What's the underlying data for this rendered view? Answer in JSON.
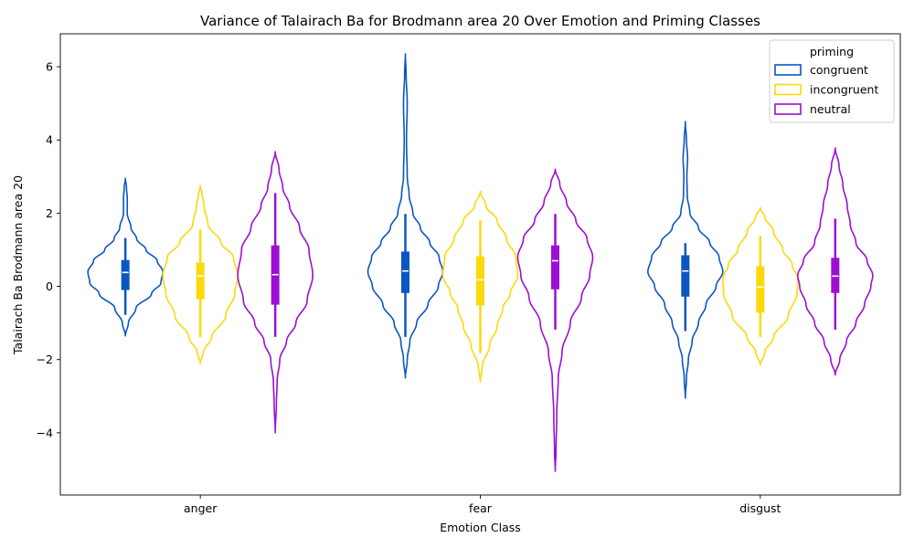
{
  "chart_data": {
    "type": "violin",
    "title": "Variance of Talairach Ba for Brodmann area 20 Over Emotion and Priming Classes",
    "xlabel": "Emotion Class",
    "ylabel": "Talairach Ba Brodmann area 20",
    "categories": [
      "anger",
      "fear",
      "disgust"
    ],
    "ylim": [
      -5.7,
      6.9
    ],
    "yticks": [
      -4,
      -2,
      0,
      2,
      4,
      6
    ],
    "ytick_labels": [
      "−4",
      "−2",
      "0",
      "2",
      "4",
      "6"
    ],
    "grid": false,
    "legend": {
      "title": "priming",
      "placement": "top-right"
    },
    "series": [
      {
        "name": "congruent",
        "color": "#0a56c2",
        "violins": [
          {
            "category": "anger",
            "median": 0.38,
            "q1": -0.1,
            "q3": 0.72,
            "whisker_low": -0.78,
            "whisker_high": 1.32,
            "min": -1.35,
            "max": 2.95,
            "profile": [
              [
                -1.35,
                0.0
              ],
              [
                -1.0,
                0.08
              ],
              [
                -0.6,
                0.28
              ],
              [
                -0.2,
                0.7
              ],
              [
                0.1,
                0.95
              ],
              [
                0.4,
                1.0
              ],
              [
                0.7,
                0.85
              ],
              [
                1.0,
                0.55
              ],
              [
                1.3,
                0.3
              ],
              [
                1.6,
                0.15
              ],
              [
                2.0,
                0.05
              ],
              [
                2.4,
                0.05
              ],
              [
                2.7,
                0.03
              ],
              [
                2.95,
                0.0
              ]
            ]
          },
          {
            "category": "fear",
            "median": 0.42,
            "q1": -0.18,
            "q3": 0.95,
            "whisker_low": -1.38,
            "whisker_high": 1.98,
            "min": -2.5,
            "max": 6.35,
            "profile": [
              [
                -2.5,
                0.0
              ],
              [
                -2.0,
                0.05
              ],
              [
                -1.5,
                0.12
              ],
              [
                -1.0,
                0.3
              ],
              [
                -0.5,
                0.6
              ],
              [
                0.0,
                0.88
              ],
              [
                0.4,
                1.0
              ],
              [
                0.8,
                0.9
              ],
              [
                1.2,
                0.65
              ],
              [
                1.6,
                0.4
              ],
              [
                2.0,
                0.2
              ],
              [
                2.5,
                0.1
              ],
              [
                3.0,
                0.05
              ],
              [
                4.0,
                0.03
              ],
              [
                5.0,
                0.05
              ],
              [
                5.8,
                0.02
              ],
              [
                6.35,
                0.0
              ]
            ]
          },
          {
            "category": "disgust",
            "median": 0.42,
            "q1": -0.28,
            "q3": 0.85,
            "whisker_low": -1.22,
            "whisker_high": 1.18,
            "min": -3.05,
            "max": 4.5,
            "profile": [
              [
                -3.05,
                0.0
              ],
              [
                -2.5,
                0.03
              ],
              [
                -2.0,
                0.08
              ],
              [
                -1.5,
                0.18
              ],
              [
                -1.0,
                0.35
              ],
              [
                -0.5,
                0.55
              ],
              [
                0.0,
                0.82
              ],
              [
                0.4,
                1.0
              ],
              [
                0.8,
                0.9
              ],
              [
                1.2,
                0.65
              ],
              [
                1.6,
                0.35
              ],
              [
                2.0,
                0.12
              ],
              [
                2.5,
                0.05
              ],
              [
                3.0,
                0.04
              ],
              [
                3.5,
                0.06
              ],
              [
                4.0,
                0.03
              ],
              [
                4.5,
                0.0
              ]
            ]
          }
        ]
      },
      {
        "name": "incongruent",
        "color": "#fcd90b",
        "violins": [
          {
            "category": "anger",
            "median": 0.28,
            "q1": -0.35,
            "q3": 0.65,
            "whisker_low": -1.38,
            "whisker_high": 1.55,
            "min": -2.1,
            "max": 2.75,
            "profile": [
              [
                -2.1,
                0.0
              ],
              [
                -1.8,
                0.08
              ],
              [
                -1.4,
                0.3
              ],
              [
                -0.8,
                0.68
              ],
              [
                -0.2,
                0.92
              ],
              [
                0.3,
                1.0
              ],
              [
                0.8,
                0.88
              ],
              [
                1.2,
                0.55
              ],
              [
                1.7,
                0.2
              ],
              [
                2.2,
                0.1
              ],
              [
                2.5,
                0.05
              ],
              [
                2.75,
                0.0
              ]
            ]
          },
          {
            "category": "fear",
            "median": 0.18,
            "q1": -0.52,
            "q3": 0.82,
            "whisker_low": -1.82,
            "whisker_high": 1.8,
            "min": -2.6,
            "max": 2.6,
            "profile": [
              [
                -2.6,
                0.0
              ],
              [
                -2.2,
                0.05
              ],
              [
                -1.6,
                0.25
              ],
              [
                -1.1,
                0.45
              ],
              [
                -0.6,
                0.6
              ],
              [
                -0.2,
                0.8
              ],
              [
                0.3,
                1.0
              ],
              [
                0.8,
                0.95
              ],
              [
                1.3,
                0.7
              ],
              [
                1.8,
                0.45
              ],
              [
                2.2,
                0.15
              ],
              [
                2.6,
                0.0
              ]
            ]
          },
          {
            "category": "disgust",
            "median": -0.02,
            "q1": -0.72,
            "q3": 0.55,
            "whisker_low": -1.38,
            "whisker_high": 1.38,
            "min": -2.15,
            "max": 2.15,
            "profile": [
              [
                -2.15,
                0.0
              ],
              [
                -1.8,
                0.12
              ],
              [
                -1.4,
                0.35
              ],
              [
                -0.8,
                0.75
              ],
              [
                -0.2,
                0.98
              ],
              [
                0.2,
                1.0
              ],
              [
                0.6,
                0.85
              ],
              [
                1.0,
                0.6
              ],
              [
                1.5,
                0.35
              ],
              [
                1.9,
                0.12
              ],
              [
                2.15,
                0.0
              ]
            ]
          }
        ]
      },
      {
        "name": "neutral",
        "color": "#9d0ed4",
        "violins": [
          {
            "category": "anger",
            "median": 0.32,
            "q1": -0.5,
            "q3": 1.12,
            "whisker_low": -1.38,
            "whisker_high": 2.55,
            "min": -4.0,
            "max": 3.68,
            "profile": [
              [
                -4.0,
                0.0
              ],
              [
                -3.2,
                0.03
              ],
              [
                -2.6,
                0.05
              ],
              [
                -2.0,
                0.12
              ],
              [
                -1.5,
                0.3
              ],
              [
                -1.0,
                0.55
              ],
              [
                -0.4,
                0.85
              ],
              [
                0.3,
                1.0
              ],
              [
                1.0,
                0.9
              ],
              [
                1.6,
                0.65
              ],
              [
                2.2,
                0.38
              ],
              [
                2.7,
                0.2
              ],
              [
                3.2,
                0.1
              ],
              [
                3.68,
                0.0
              ]
            ]
          },
          {
            "category": "fear",
            "median": 0.7,
            "q1": -0.08,
            "q3": 1.12,
            "whisker_low": -1.18,
            "whisker_high": 1.98,
            "min": -5.05,
            "max": 3.2,
            "profile": [
              [
                -5.05,
                0.0
              ],
              [
                -4.5,
                0.02
              ],
              [
                -3.5,
                0.04
              ],
              [
                -2.5,
                0.08
              ],
              [
                -1.8,
                0.18
              ],
              [
                -1.0,
                0.4
              ],
              [
                -0.3,
                0.7
              ],
              [
                0.3,
                0.92
              ],
              [
                0.8,
                1.0
              ],
              [
                1.3,
                0.85
              ],
              [
                1.8,
                0.55
              ],
              [
                2.3,
                0.3
              ],
              [
                2.8,
                0.12
              ],
              [
                3.2,
                0.0
              ]
            ]
          },
          {
            "category": "disgust",
            "median": 0.28,
            "q1": -0.18,
            "q3": 0.78,
            "whisker_low": -1.18,
            "whisker_high": 1.85,
            "min": -2.42,
            "max": 3.78,
            "profile": [
              [
                -2.42,
                0.0
              ],
              [
                -2.0,
                0.12
              ],
              [
                -1.5,
                0.3
              ],
              [
                -1.0,
                0.55
              ],
              [
                -0.5,
                0.78
              ],
              [
                0.0,
                0.95
              ],
              [
                0.3,
                1.0
              ],
              [
                0.7,
                0.85
              ],
              [
                1.2,
                0.55
              ],
              [
                1.7,
                0.4
              ],
              [
                2.2,
                0.32
              ],
              [
                2.8,
                0.2
              ],
              [
                3.3,
                0.1
              ],
              [
                3.78,
                0.0
              ]
            ]
          }
        ]
      }
    ]
  }
}
